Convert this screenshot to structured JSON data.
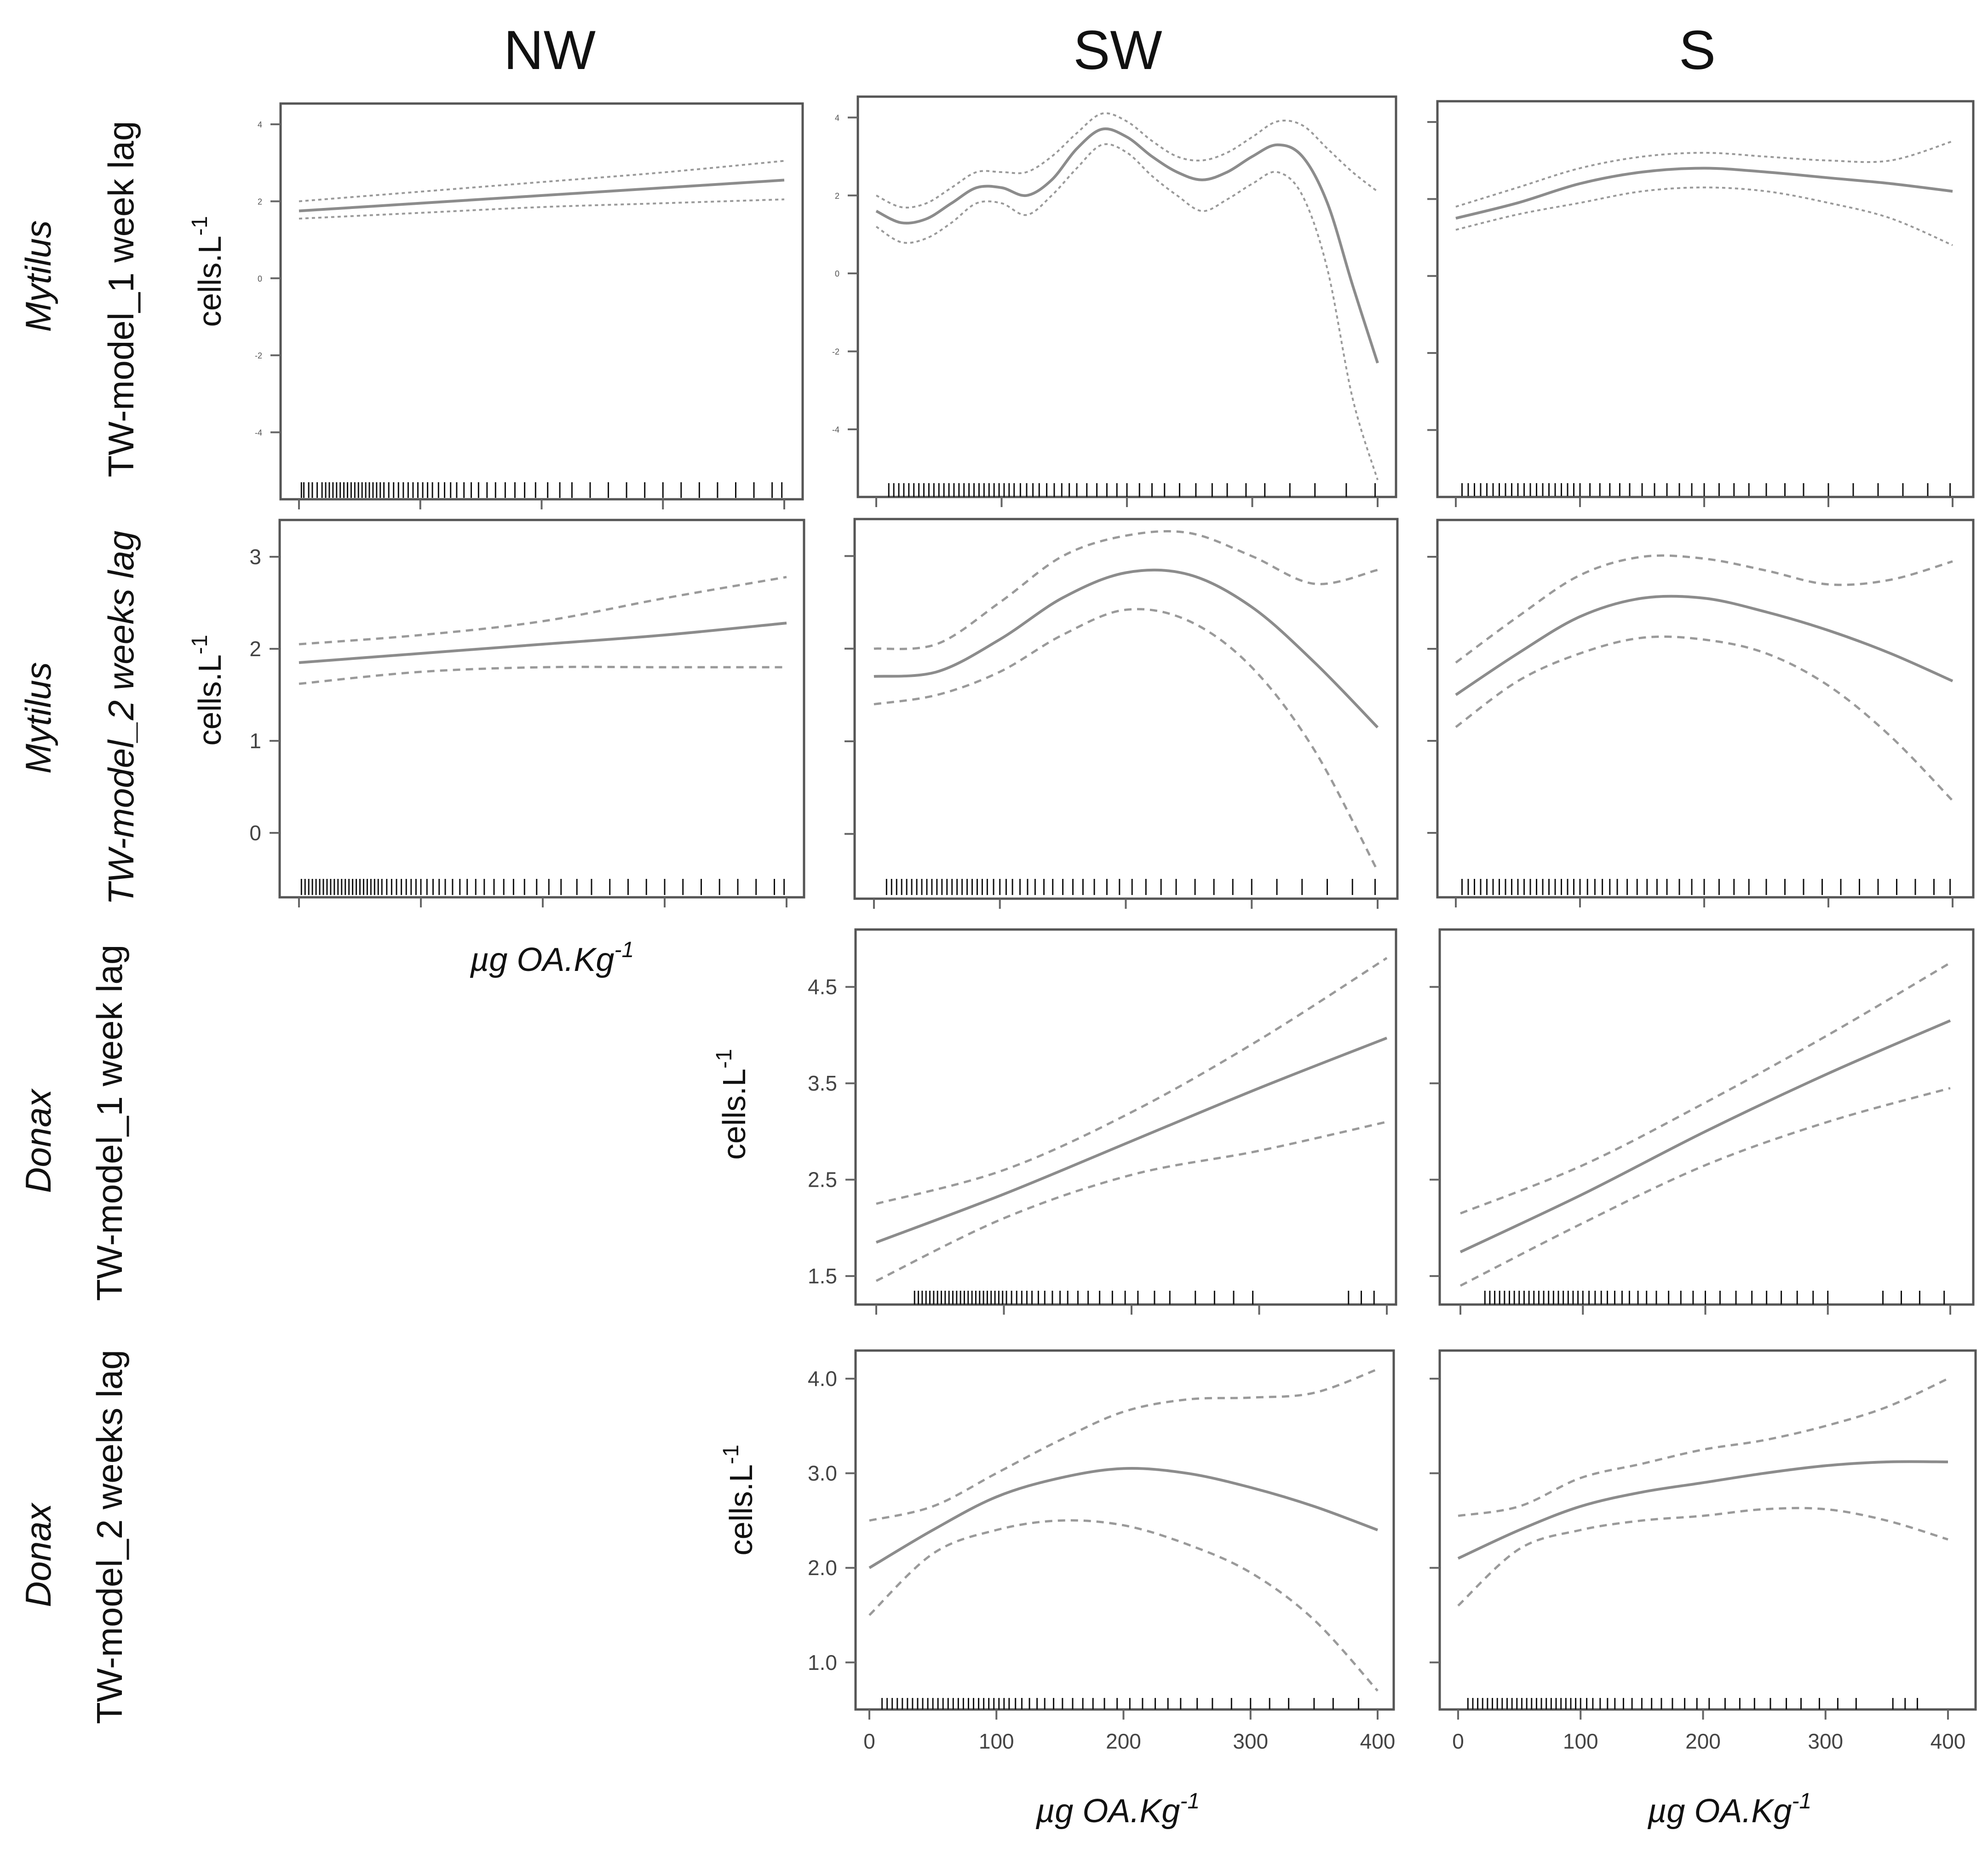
{
  "figure": {
    "columns": [
      "NW",
      "SW",
      "S"
    ],
    "rows": [
      {
        "model": "TW-model_1 week lag",
        "species": "Mytilus"
      },
      {
        "model": "TW-model_2 weeks lag",
        "species": "Mytilus"
      },
      {
        "model": "TW-model_1 week lag",
        "species": "Donax"
      },
      {
        "model": "TW-model_2 weeks lag",
        "species": "Donax"
      }
    ],
    "ylabel_text": "cells.L",
    "ylabel_sup": "-1",
    "xlabel_text": "µg OA.Kg",
    "xlabel_sup": "-1"
  },
  "chart_data": [
    {
      "id": "nw_r1",
      "type": "line",
      "column": "NW",
      "row": 1,
      "xlim": [
        0,
        400
      ],
      "ylim": [
        -5.5,
        4.3
      ],
      "yticks": [
        -4,
        -2,
        0,
        2,
        4
      ],
      "ytick_labels": [
        "-4",
        "-2",
        "0",
        "2",
        "4"
      ],
      "x": [
        0,
        100,
        200,
        300,
        400
      ],
      "series": [
        {
          "name": "fit",
          "values": [
            1.75,
            1.95,
            2.15,
            2.35,
            2.55
          ]
        },
        {
          "name": "upper",
          "values": [
            2.0,
            2.25,
            2.5,
            2.75,
            3.05
          ]
        },
        {
          "name": "lower",
          "values": [
            1.55,
            1.7,
            1.85,
            1.95,
            2.05
          ]
        }
      ],
      "rug": [
        2,
        4,
        8,
        11,
        15,
        19,
        22,
        25,
        28,
        31,
        34,
        37,
        40,
        43,
        46,
        49,
        52,
        55,
        58,
        61,
        64,
        67,
        70,
        74,
        78,
        82,
        86,
        90,
        94,
        98,
        102,
        106,
        110,
        115,
        120,
        125,
        130,
        136,
        142,
        148,
        155,
        162,
        170,
        178,
        186,
        195,
        205,
        215,
        225,
        240,
        255,
        270,
        285,
        300,
        315,
        330,
        345,
        360,
        375,
        390,
        398
      ]
    },
    {
      "id": "sw_r1",
      "type": "line",
      "column": "SW",
      "row": 1,
      "xlim": [
        0,
        400
      ],
      "ylim": [
        -5.5,
        4.3
      ],
      "yticks": [
        -4,
        -2,
        0,
        2,
        4
      ],
      "ytick_labels": [
        "-4",
        "-2",
        "0",
        "2",
        "4"
      ],
      "x": [
        0,
        20,
        40,
        60,
        80,
        100,
        120,
        140,
        160,
        180,
        200,
        220,
        240,
        260,
        280,
        300,
        320,
        340,
        360,
        380,
        400
      ],
      "series": [
        {
          "name": "fit",
          "values": [
            1.6,
            1.3,
            1.4,
            1.8,
            2.2,
            2.2,
            2.0,
            2.4,
            3.2,
            3.7,
            3.5,
            3.0,
            2.6,
            2.4,
            2.6,
            3.0,
            3.3,
            3.0,
            1.8,
            -0.3,
            -2.3
          ]
        },
        {
          "name": "upper",
          "values": [
            2.0,
            1.7,
            1.8,
            2.2,
            2.6,
            2.6,
            2.6,
            3.0,
            3.6,
            4.1,
            3.9,
            3.4,
            3.0,
            2.9,
            3.1,
            3.5,
            3.9,
            3.8,
            3.2,
            2.6,
            2.1
          ]
        },
        {
          "name": "lower",
          "values": [
            1.2,
            0.8,
            0.9,
            1.3,
            1.8,
            1.8,
            1.5,
            2.0,
            2.7,
            3.3,
            3.1,
            2.5,
            2.0,
            1.6,
            1.9,
            2.3,
            2.6,
            2.0,
            0.1,
            -3.2,
            -5.3
          ]
        }
      ],
      "rug": [
        10,
        14,
        18,
        22,
        26,
        30,
        34,
        38,
        42,
        46,
        50,
        54,
        58,
        62,
        66,
        70,
        74,
        78,
        82,
        86,
        90,
        94,
        98,
        102,
        106,
        110,
        115,
        120,
        125,
        130,
        136,
        142,
        148,
        154,
        160,
        168,
        176,
        184,
        192,
        200,
        210,
        220,
        230,
        242,
        255,
        268,
        280,
        295,
        310,
        330,
        350,
        375,
        398
      ]
    },
    {
      "id": "s_r1",
      "type": "line",
      "column": "S",
      "row": 1,
      "xlim": [
        0,
        400
      ],
      "ylim": [
        -5.5,
        4.3
      ],
      "yticks": [
        -4,
        -2,
        0,
        2,
        4
      ],
      "ytick_labels": [
        "-4",
        "-2",
        "0",
        "2",
        "4"
      ],
      "x": [
        0,
        50,
        100,
        150,
        200,
        250,
        300,
        350,
        400
      ],
      "series": [
        {
          "name": "fit",
          "values": [
            1.5,
            1.9,
            2.4,
            2.7,
            2.8,
            2.7,
            2.55,
            2.4,
            2.2
          ]
        },
        {
          "name": "upper",
          "values": [
            1.8,
            2.3,
            2.8,
            3.1,
            3.2,
            3.1,
            3.0,
            3.0,
            3.5
          ]
        },
        {
          "name": "lower",
          "values": [
            1.2,
            1.6,
            1.9,
            2.2,
            2.3,
            2.2,
            1.9,
            1.5,
            0.8
          ]
        }
      ],
      "rug": [
        5,
        10,
        15,
        20,
        25,
        30,
        35,
        40,
        45,
        50,
        55,
        60,
        65,
        70,
        75,
        80,
        85,
        90,
        95,
        100,
        108,
        116,
        124,
        132,
        140,
        150,
        160,
        170,
        180,
        190,
        200,
        212,
        224,
        236,
        250,
        265,
        280,
        300,
        320,
        340,
        360,
        380,
        398
      ]
    },
    {
      "id": "nw_r2",
      "type": "line",
      "column": "NW",
      "row": 2,
      "xlim": [
        0,
        400
      ],
      "ylim": [
        -0.6,
        3.3
      ],
      "yticks": [
        0,
        1,
        2,
        3
      ],
      "ytick_labels": [
        "0",
        "1",
        "2",
        "3"
      ],
      "x": [
        0,
        100,
        200,
        300,
        400
      ],
      "series": [
        {
          "name": "fit",
          "values": [
            1.85,
            1.95,
            2.05,
            2.15,
            2.28
          ]
        },
        {
          "name": "upper",
          "values": [
            2.05,
            2.15,
            2.3,
            2.55,
            2.78
          ]
        },
        {
          "name": "lower",
          "values": [
            1.62,
            1.75,
            1.8,
            1.8,
            1.8
          ]
        }
      ],
      "rug": [
        2,
        5,
        8,
        11,
        14,
        17,
        20,
        23,
        26,
        29,
        32,
        35,
        38,
        41,
        44,
        47,
        50,
        53,
        56,
        59,
        62,
        65,
        68,
        72,
        76,
        80,
        84,
        88,
        92,
        96,
        100,
        105,
        110,
        115,
        120,
        126,
        132,
        138,
        145,
        152,
        160,
        168,
        176,
        185,
        195,
        205,
        215,
        228,
        240,
        255,
        270,
        285,
        300,
        315,
        330,
        345,
        360,
        375,
        390,
        398
      ]
    },
    {
      "id": "sw_r2",
      "type": "line",
      "column": "SW",
      "row": 2,
      "xlim": [
        0,
        400
      ],
      "ylim": [
        -0.6,
        3.3
      ],
      "yticks": [
        0,
        1,
        2,
        3
      ],
      "ytick_labels": [
        "0",
        "1",
        "2",
        "3"
      ],
      "x": [
        0,
        50,
        100,
        150,
        200,
        250,
        300,
        350,
        400
      ],
      "series": [
        {
          "name": "fit",
          "values": [
            1.7,
            1.75,
            2.1,
            2.55,
            2.82,
            2.8,
            2.45,
            1.85,
            1.15
          ]
        },
        {
          "name": "upper",
          "values": [
            2.0,
            2.05,
            2.5,
            3.0,
            3.22,
            3.25,
            3.0,
            2.7,
            2.85
          ]
        },
        {
          "name": "lower",
          "values": [
            1.4,
            1.5,
            1.75,
            2.15,
            2.42,
            2.3,
            1.8,
            0.9,
            -0.4
          ]
        }
      ],
      "rug": [
        10,
        14,
        18,
        22,
        26,
        30,
        34,
        38,
        42,
        46,
        50,
        54,
        58,
        62,
        66,
        70,
        74,
        78,
        82,
        86,
        90,
        95,
        100,
        105,
        110,
        116,
        122,
        128,
        135,
        142,
        150,
        158,
        166,
        175,
        185,
        195,
        205,
        216,
        228,
        240,
        255,
        270,
        285,
        300,
        320,
        340,
        360,
        380,
        398
      ]
    },
    {
      "id": "s_r2",
      "type": "line",
      "column": "S",
      "row": 2,
      "xlim": [
        0,
        400
      ],
      "ylim": [
        -0.6,
        3.3
      ],
      "yticks": [
        0,
        1,
        2,
        3
      ],
      "ytick_labels": [
        "0",
        "1",
        "2",
        "3"
      ],
      "x": [
        0,
        50,
        100,
        150,
        200,
        250,
        300,
        350,
        400
      ],
      "series": [
        {
          "name": "fit",
          "values": [
            1.5,
            1.95,
            2.35,
            2.55,
            2.55,
            2.4,
            2.2,
            1.95,
            1.65
          ]
        },
        {
          "name": "upper",
          "values": [
            1.85,
            2.35,
            2.8,
            3.0,
            2.98,
            2.85,
            2.7,
            2.75,
            2.95
          ]
        },
        {
          "name": "lower",
          "values": [
            1.15,
            1.65,
            1.95,
            2.12,
            2.1,
            1.95,
            1.6,
            1.05,
            0.35
          ]
        }
      ],
      "rug": [
        5,
        10,
        15,
        20,
        25,
        30,
        35,
        40,
        45,
        50,
        55,
        60,
        65,
        70,
        75,
        80,
        85,
        90,
        95,
        100,
        106,
        112,
        118,
        124,
        130,
        138,
        146,
        154,
        162,
        170,
        180,
        190,
        200,
        212,
        224,
        236,
        250,
        265,
        280,
        295,
        310,
        325,
        340,
        355,
        370,
        385,
        398
      ]
    },
    {
      "id": "sw_r3",
      "type": "line",
      "column": "SW",
      "row": 3,
      "xlim": [
        0,
        400
      ],
      "ylim": [
        1.3,
        5.0
      ],
      "yticks": [
        1.5,
        2.5,
        3.5,
        4.5
      ],
      "ytick_labels": [
        "1.5",
        "2.5",
        "3.5",
        "4.5"
      ],
      "x": [
        0,
        100,
        200,
        300,
        400
      ],
      "series": [
        {
          "name": "fit",
          "values": [
            1.85,
            2.35,
            2.9,
            3.45,
            3.97
          ]
        },
        {
          "name": "upper",
          "values": [
            2.25,
            2.6,
            3.2,
            3.95,
            4.8
          ]
        },
        {
          "name": "lower",
          "values": [
            1.45,
            2.1,
            2.55,
            2.8,
            3.1
          ]
        }
      ],
      "rug": [
        30,
        33,
        36,
        39,
        42,
        45,
        48,
        51,
        54,
        57,
        60,
        63,
        66,
        69,
        72,
        75,
        78,
        81,
        84,
        87,
        90,
        93,
        96,
        99,
        102,
        106,
        110,
        114,
        118,
        122,
        127,
        132,
        138,
        144,
        150,
        158,
        166,
        175,
        185,
        195,
        205,
        218,
        230,
        250,
        265,
        280,
        295,
        370,
        380,
        390
      ]
    },
    {
      "id": "s_r3",
      "type": "line",
      "column": "S",
      "row": 3,
      "xlim": [
        0,
        400
      ],
      "ylim": [
        1.3,
        5.0
      ],
      "yticks": [
        1.5,
        2.5,
        3.5,
        4.5
      ],
      "ytick_labels": [
        "1.5",
        "2.5",
        "3.5",
        "4.5"
      ],
      "x": [
        0,
        100,
        200,
        300,
        400
      ],
      "series": [
        {
          "name": "fit",
          "values": [
            1.75,
            2.35,
            3.0,
            3.6,
            4.15
          ]
        },
        {
          "name": "upper",
          "values": [
            2.15,
            2.65,
            3.3,
            4.0,
            4.75
          ]
        },
        {
          "name": "lower",
          "values": [
            1.4,
            2.05,
            2.65,
            3.1,
            3.45
          ]
        }
      ],
      "rug": [
        20,
        24,
        28,
        32,
        36,
        40,
        44,
        48,
        52,
        56,
        60,
        64,
        68,
        72,
        76,
        80,
        84,
        88,
        92,
        96,
        100,
        105,
        110,
        115,
        120,
        126,
        132,
        138,
        145,
        152,
        160,
        170,
        180,
        190,
        200,
        212,
        225,
        238,
        250,
        262,
        275,
        288,
        300,
        345,
        360,
        375,
        395
      ]
    },
    {
      "id": "sw_r4",
      "type": "line",
      "column": "SW",
      "row": 4,
      "xlim": [
        -5,
        410
      ],
      "ylim": [
        0.6,
        4.2
      ],
      "yticks": [
        1.0,
        2.0,
        3.0,
        4.0
      ],
      "ytick_labels": [
        "1.0",
        "2.0",
        "3.0",
        "4.0"
      ],
      "xticks": [
        0,
        100,
        200,
        300,
        400
      ],
      "x": [
        0,
        50,
        100,
        150,
        200,
        250,
        300,
        350,
        400
      ],
      "series": [
        {
          "name": "fit",
          "values": [
            2.0,
            2.4,
            2.75,
            2.95,
            3.05,
            3.0,
            2.85,
            2.65,
            2.4
          ]
        },
        {
          "name": "upper",
          "values": [
            2.5,
            2.65,
            3.0,
            3.35,
            3.65,
            3.78,
            3.8,
            3.85,
            4.1
          ]
        },
        {
          "name": "lower",
          "values": [
            1.5,
            2.15,
            2.4,
            2.5,
            2.45,
            2.25,
            1.95,
            1.45,
            0.7
          ]
        }
      ],
      "rug": [
        10,
        14,
        18,
        22,
        26,
        30,
        34,
        38,
        42,
        46,
        50,
        54,
        58,
        62,
        66,
        70,
        74,
        78,
        82,
        86,
        90,
        94,
        98,
        102,
        106,
        110,
        115,
        120,
        126,
        132,
        138,
        145,
        152,
        160,
        168,
        176,
        185,
        195,
        205,
        215,
        225,
        235,
        245,
        258,
        270,
        285,
        300,
        315,
        330,
        350,
        365,
        385
      ]
    },
    {
      "id": "s_r4",
      "type": "line",
      "column": "S",
      "row": 4,
      "xlim": [
        -5,
        410
      ],
      "ylim": [
        0.6,
        4.2
      ],
      "yticks": [
        1.0,
        2.0,
        3.0,
        4.0
      ],
      "ytick_labels": [
        "1.0",
        "2.0",
        "3.0",
        "4.0"
      ],
      "xticks": [
        0,
        100,
        200,
        300,
        400
      ],
      "x": [
        0,
        50,
        100,
        150,
        200,
        250,
        300,
        350,
        400
      ],
      "series": [
        {
          "name": "fit",
          "values": [
            2.1,
            2.4,
            2.65,
            2.8,
            2.9,
            3.0,
            3.08,
            3.12,
            3.12
          ]
        },
        {
          "name": "upper",
          "values": [
            2.55,
            2.65,
            2.95,
            3.1,
            3.25,
            3.35,
            3.5,
            3.7,
            4.0
          ]
        },
        {
          "name": "lower",
          "values": [
            1.6,
            2.2,
            2.4,
            2.5,
            2.55,
            2.62,
            2.62,
            2.5,
            2.3
          ]
        }
      ],
      "rug": [
        8,
        12,
        16,
        20,
        24,
        28,
        32,
        36,
        40,
        44,
        48,
        52,
        56,
        60,
        64,
        68,
        72,
        76,
        80,
        84,
        88,
        92,
        96,
        100,
        105,
        110,
        116,
        122,
        128,
        135,
        142,
        150,
        158,
        166,
        175,
        185,
        195,
        205,
        218,
        230,
        242,
        255,
        268,
        280,
        295,
        310,
        325,
        355,
        365,
        375
      ]
    }
  ]
}
